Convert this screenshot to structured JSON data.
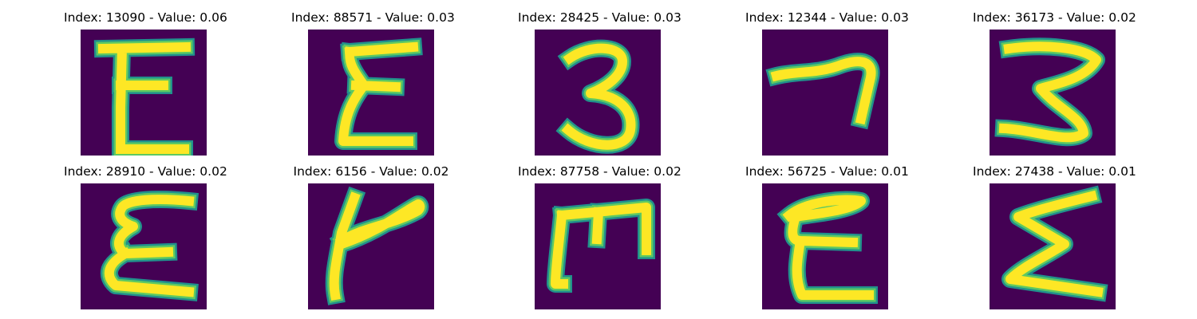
{
  "colors": {
    "background": "#440154",
    "stroke_outer": "#21918c",
    "stroke_mid": "#5ec962",
    "stroke_core": "#fde725"
  },
  "samples": [
    {
      "title": "Index: 13090 - Value: 0.06",
      "glyph": "E"
    },
    {
      "title": "Index: 88571 - Value: 0.03",
      "glyph": "sigma-E"
    },
    {
      "title": "Index: 28425 - Value: 0.03",
      "glyph": "3"
    },
    {
      "title": "Index: 12344 - Value: 0.03",
      "glyph": "7"
    },
    {
      "title": "Index: 36173 - Value: 0.02",
      "glyph": "3-open"
    },
    {
      "title": "Index: 28910 - Value: 0.02",
      "glyph": "E"
    },
    {
      "title": "Index: 6156 - Value: 0.02",
      "glyph": "Y-hook"
    },
    {
      "title": "Index: 87758 - Value: 0.02",
      "glyph": "M-rotated"
    },
    {
      "title": "Index: 56725 - Value: 0.01",
      "glyph": "E"
    },
    {
      "title": "Index: 27438 - Value: 0.01",
      "glyph": "sigma"
    }
  ]
}
